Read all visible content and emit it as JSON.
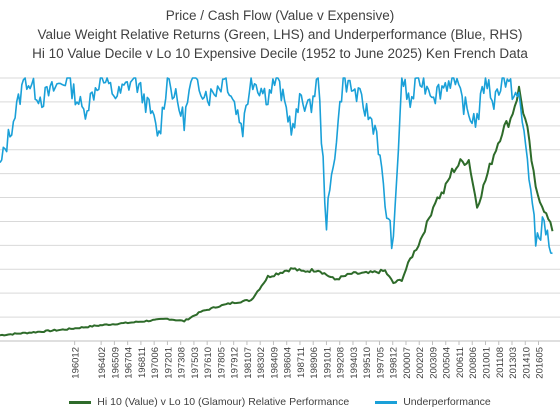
{
  "title_lines": [
    "Price / Cash Flow (Value v Expensive)",
    "Value Weight Relative Returns (Green, LHS) and Underperformance (Blue, RHS)",
    "Hi 10 Value Decile v Lo 10 Expensive Decile (1952 to June 2025) Ken French Data"
  ],
  "chart_data": {
    "type": "line",
    "x_tick_labels": [
      "196012",
      "196402",
      "196509",
      "196704",
      "196811",
      "197006",
      "197201",
      "197308",
      "197503",
      "197610",
      "197805",
      "197912",
      "198107",
      "198302",
      "198409",
      "198604",
      "198711",
      "198906",
      "199101",
      "199208",
      "199403",
      "199510",
      "199705",
      "199812",
      "200007",
      "200202",
      "200309",
      "200504",
      "200611",
      "200806",
      "201001",
      "201108",
      "201303",
      "201410",
      "201605"
    ],
    "colors": {
      "relative_performance": "#2E6B2A",
      "underperformance": "#1AA0D8"
    },
    "grid": "horizontal",
    "legend_position": "bottom",
    "series": [
      {
        "name": "Hi 10 (Value) v Lo 10 (Glamour) Relative Performance",
        "axis": "left",
        "x": [
          1952,
          1956,
          1960,
          1964,
          1968,
          1972,
          1974,
          1976,
          1978,
          1980,
          1982,
          1984,
          1986,
          1987,
          1988,
          1990,
          1992,
          1994,
          1996,
          1997,
          1998,
          1999,
          2000,
          2001,
          2002,
          2003,
          2004,
          2005,
          2006,
          2007,
          2008,
          2009,
          2010,
          2011,
          2012,
          2013,
          2014,
          2015,
          2016,
          2017,
          2018
        ],
        "values": [
          1.0,
          1.5,
          2.0,
          2.7,
          3.2,
          3.8,
          3.4,
          5.0,
          5.9,
          6.6,
          7.0,
          11.0,
          12.0,
          12.4,
          11.9,
          12.2,
          10.5,
          11.5,
          11.6,
          11.8,
          12.0,
          9.9,
          10.5,
          14.0,
          16.5,
          20.0,
          24.0,
          25.5,
          29.0,
          30.5,
          31.0,
          23.0,
          27.5,
          32.0,
          36.0,
          38.0,
          43.0,
          36.0,
          26.0,
          22.5,
          19.0
        ]
      },
      {
        "name": "Underperformance",
        "axis": "right",
        "x": [
          1952,
          1955,
          1957,
          1960,
          1962,
          1964,
          1966,
          1968,
          1970,
          1971,
          1972,
          1974,
          1975,
          1977,
          1979,
          1981,
          1982,
          1984,
          1985,
          1987,
          1988,
          1989,
          1990,
          1991,
          1993,
          1995,
          1997,
          1998,
          1999,
          2000,
          2001,
          2002,
          2004,
          2006,
          2008,
          2009,
          2010,
          2011,
          2012,
          2014,
          2015,
          2016,
          2017,
          2018
        ],
        "values": [
          0.66,
          1.0,
          0.92,
          1.0,
          0.87,
          1.0,
          0.93,
          1.0,
          0.87,
          0.78,
          1.0,
          0.84,
          1.0,
          0.93,
          1.0,
          0.81,
          1.0,
          0.93,
          1.0,
          0.8,
          0.93,
          0.88,
          1.0,
          0.45,
          1.0,
          0.92,
          0.8,
          0.52,
          0.36,
          1.0,
          0.9,
          1.0,
          0.94,
          1.0,
          0.86,
          0.84,
          1.0,
          0.91,
          1.0,
          0.92,
          0.7,
          0.38,
          0.45,
          0.32
        ]
      }
    ]
  }
}
